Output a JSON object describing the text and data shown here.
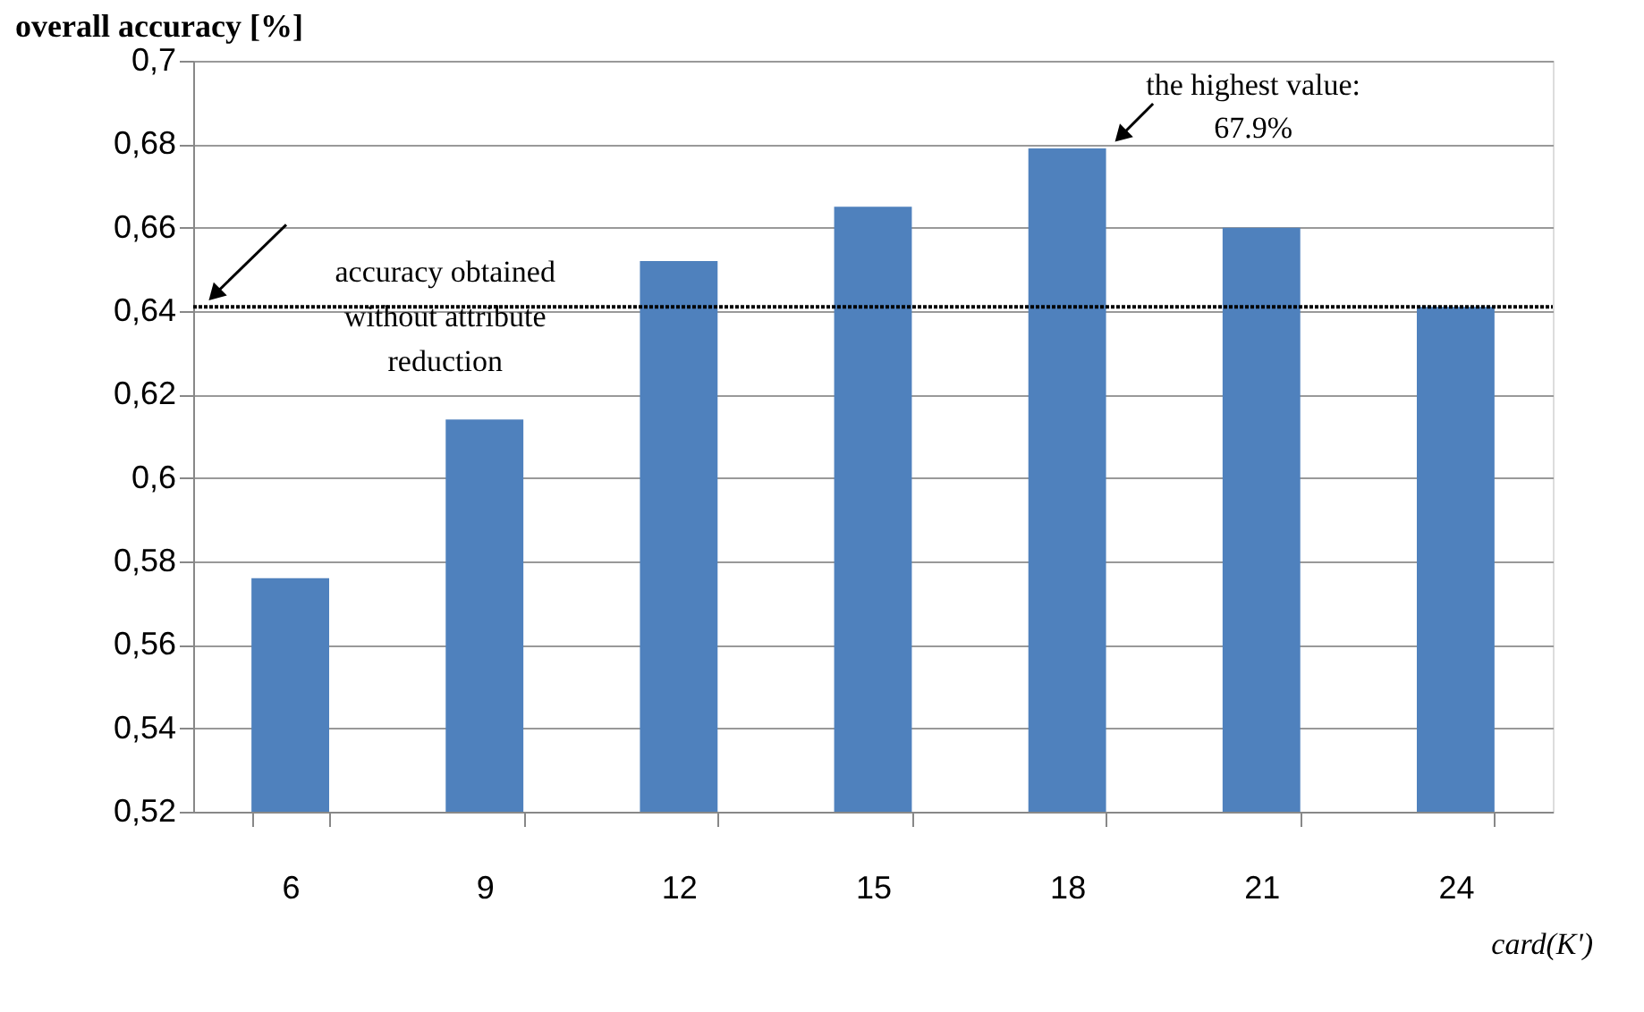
{
  "chart_data": {
    "type": "bar",
    "ylabel": "overall accuracy [%]",
    "xlabel": "card(K')",
    "categories": [
      "6",
      "9",
      "12",
      "15",
      "18",
      "21",
      "24"
    ],
    "values": [
      0.576,
      0.614,
      0.652,
      0.665,
      0.679,
      0.66,
      0.641
    ],
    "color": "#4f81bd",
    "ylim": [
      0.52,
      0.7
    ],
    "yticks": [
      {
        "value": 0.52,
        "label": "0,52"
      },
      {
        "value": 0.54,
        "label": "0,54"
      },
      {
        "value": 0.56,
        "label": "0,56"
      },
      {
        "value": 0.58,
        "label": "0,58"
      },
      {
        "value": 0.6,
        "label": "0,6"
      },
      {
        "value": 0.62,
        "label": "0,62"
      },
      {
        "value": 0.64,
        "label": "0,64"
      },
      {
        "value": 0.66,
        "label": "0,66"
      },
      {
        "value": 0.68,
        "label": "0,68"
      },
      {
        "value": 0.7,
        "label": "0,7"
      }
    ],
    "grid": "y",
    "ref_lines": [
      {
        "axis": "y",
        "value": 0.641,
        "label": "accuracy obtained without attribute reduction",
        "color": "#000000",
        "line_style": "dotted"
      }
    ],
    "annotations": [
      {
        "text": "the highest value: 67.9%",
        "x": "18",
        "y": 0.679
      }
    ]
  }
}
